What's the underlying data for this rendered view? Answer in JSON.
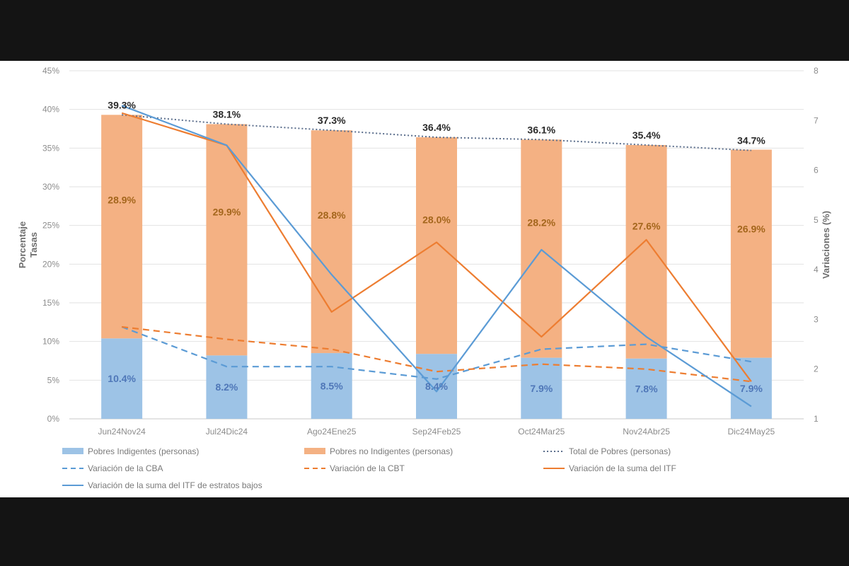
{
  "chart_data": {
    "type": "bar",
    "stacked": true,
    "categories": [
      "Jun24Nov24",
      "Jul24Dic24",
      "Ago24Ene25",
      "Sep24Feb25",
      "Oct24Mar25",
      "Nov24Abr25",
      "Dic24May25"
    ],
    "y_left": {
      "label": "Porcentaje Tasas",
      "ticks": [
        "0%",
        "5%",
        "10%",
        "15%",
        "20%",
        "25%",
        "30%",
        "35%",
        "40%",
        "45%"
      ],
      "range": [
        0,
        45
      ]
    },
    "y_right": {
      "label": "Variaciones (%)",
      "ticks": [
        "1",
        "2",
        "3",
        "4",
        "5",
        "6",
        "7",
        "8"
      ],
      "range": [
        1,
        8
      ]
    },
    "bars": [
      {
        "name": "Pobres Indigentes (personas)",
        "color": "#9dc3e6",
        "values": [
          10.4,
          8.2,
          8.5,
          8.4,
          7.9,
          7.8,
          7.9
        ],
        "labels": [
          "10.4%",
          "8.2%",
          "8.5%",
          "8.4%",
          "7.9%",
          "7.8%",
          "7.9%"
        ]
      },
      {
        "name": "Pobres no Indigentes (personas)",
        "color": "#f4b183",
        "values": [
          28.9,
          29.9,
          28.8,
          28.0,
          28.2,
          27.6,
          26.9
        ],
        "labels": [
          "28.9%",
          "29.9%",
          "28.8%",
          "28.0%",
          "28.2%",
          "27.6%",
          "26.9%"
        ]
      }
    ],
    "total": {
      "name": "Total de Pobres (personas)",
      "color": "#5b6e8c",
      "values": [
        39.3,
        38.1,
        37.3,
        36.4,
        36.1,
        35.4,
        34.7
      ],
      "labels": [
        "39.3%",
        "38.1%",
        "37.3%",
        "36.4%",
        "36.1%",
        "35.4%",
        "34.7%"
      ]
    },
    "lines_right_axis": [
      {
        "name": "Variación de la CBA",
        "color": "#5b9bd5",
        "style": "dashed",
        "values": [
          2.85,
          2.05,
          2.05,
          1.8,
          2.4,
          2.5,
          2.15
        ]
      },
      {
        "name": "Variación de la CBT",
        "color": "#ed7d31",
        "style": "dashed",
        "values": [
          2.85,
          2.6,
          2.4,
          1.95,
          2.1,
          2.0,
          1.75
        ]
      },
      {
        "name": "Variación de la suma del ITF",
        "color": "#ed7d31",
        "style": "solid",
        "values": [
          7.15,
          6.5,
          3.15,
          4.55,
          2.65,
          4.6,
          1.75
        ]
      },
      {
        "name": "Variación de la suma del ITF de estratos bajos",
        "color": "#5b9bd5",
        "style": "solid",
        "values": [
          7.3,
          6.5,
          3.9,
          1.55,
          4.4,
          2.65,
          1.25
        ]
      }
    ],
    "grid": true,
    "legend_position": "bottom"
  }
}
